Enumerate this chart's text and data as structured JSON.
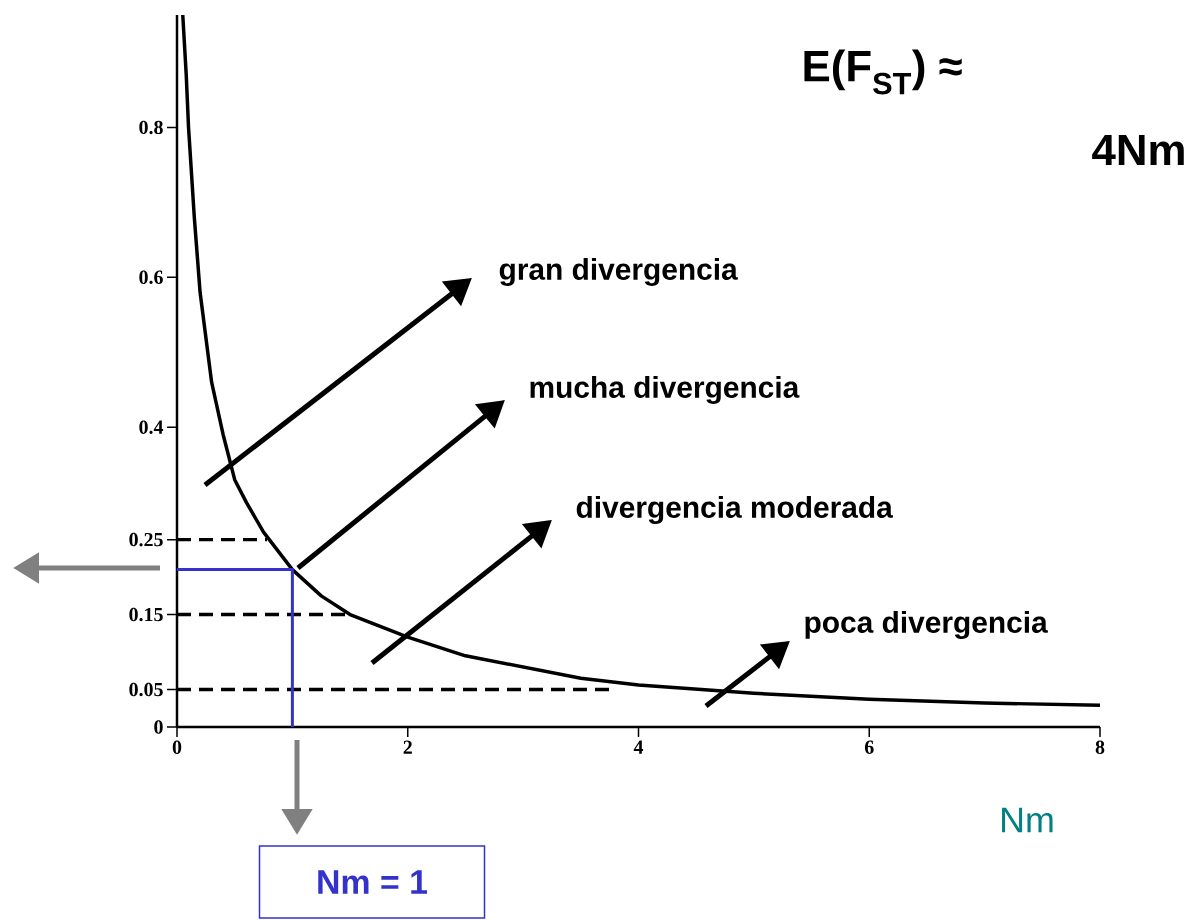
{
  "chart_data": {
    "type": "line",
    "title": "E(F$_{ST}$) ≈",
    "xlabel": "Nm",
    "annotations": [
      "4Nm",
      "gran divergencia",
      "mucha divergencia",
      "divergencia moderada",
      "poca divergencia",
      "Nm = 1"
    ],
    "xlim": [
      0,
      8
    ],
    "ylim": [
      0,
      0.95
    ],
    "xticks": [
      0,
      2,
      4,
      6,
      8
    ],
    "yticks": [
      0,
      0.05,
      0.15,
      0.25,
      0.4,
      0.6,
      0.8
    ],
    "grid": false,
    "marker": "none",
    "series": [
      {
        "color": "#000000",
        "line_style": "solid",
        "x": [
          0.05,
          0.08,
          0.1,
          0.15,
          0.2,
          0.3,
          0.4,
          0.5,
          0.6,
          0.75,
          1.0,
          1.25,
          1.5,
          2.0,
          2.5,
          3.0,
          3.5,
          4.0,
          5.0,
          6.0,
          7.0,
          8.0
        ],
        "values": [
          0.95,
          0.87,
          0.8,
          0.68,
          0.58,
          0.46,
          0.39,
          0.33,
          0.3,
          0.26,
          0.21,
          0.175,
          0.15,
          0.12,
          0.095,
          0.08,
          0.065,
          0.056,
          0.045,
          0.037,
          0.032,
          0.029
        ]
      },
      {
        "color": "#000000",
        "line_style": "dashed",
        "x": [
          0,
          0.78
        ],
        "values": [
          0.25,
          0.25
        ]
      },
      {
        "color": "#000000",
        "line_style": "dashed",
        "x": [
          0,
          1.5
        ],
        "values": [
          0.15,
          0.15
        ]
      },
      {
        "color": "#000000",
        "line_style": "dashed",
        "x": [
          0,
          3.8
        ],
        "values": [
          0.05,
          0.05
        ]
      },
      {
        "color": "#3333cc",
        "line_style": "solid",
        "x": [
          0,
          1,
          1
        ],
        "values": [
          0.21,
          0.21,
          0
        ]
      }
    ]
  }
}
